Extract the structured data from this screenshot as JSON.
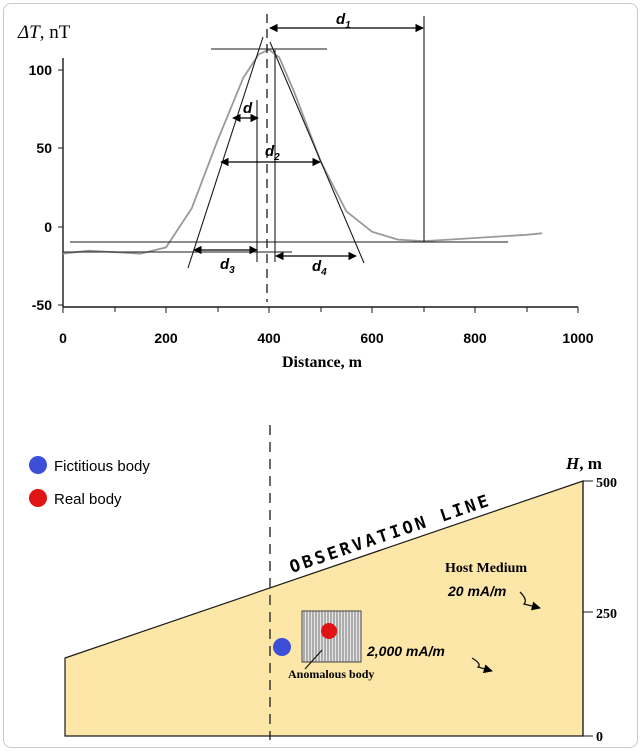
{
  "colors": {
    "axis": "#1a1a1a",
    "profile": "#9a9a9a",
    "host_fill": "#fde7a8",
    "fictitious": "#3d4fd6",
    "real": "#e01414",
    "anomalous_fill": "#d8d8d8"
  },
  "profile_chart": {
    "y_label_symbol": "ΔT",
    "y_label_unit": ", nT",
    "x_label": "Distance, m",
    "x_ticks": [
      "0",
      "200",
      "400",
      "600",
      "800",
      "1000"
    ],
    "y_ticks": [
      "100",
      "50",
      "0",
      "-50"
    ],
    "d_labels": {
      "d1": "d",
      "d1_sub": "1",
      "d2": "d",
      "d2_sub": "2",
      "d3": "d",
      "d3_sub": "3",
      "d4": "d",
      "d4_sub": "4",
      "dc": "d",
      "dc_sub": ""
    }
  },
  "chart_data": {
    "type": "line",
    "title": "",
    "xlabel": "Distance, m",
    "ylabel": "ΔT, nT",
    "xlim": [
      0,
      1000
    ],
    "ylim": [
      -50,
      110
    ],
    "series": [
      {
        "x": [
          0,
          50,
          100,
          150,
          200,
          250,
          300,
          350,
          380,
          400,
          420,
          450,
          500,
          550,
          600,
          650,
          700,
          750,
          800,
          850,
          900,
          930
        ],
        "y": [
          -17,
          -15,
          -16,
          -17,
          -13,
          12,
          55,
          95,
          110,
          113,
          108,
          85,
          42,
          10,
          -3,
          -8,
          -9,
          -8,
          -7,
          -6,
          -5,
          -4
        ]
      }
    ]
  },
  "model": {
    "legend": [
      {
        "label": "Fictitious body",
        "color": "#3d4fd6"
      },
      {
        "label": "Real body",
        "color": "#e01414"
      }
    ],
    "h_axis_label": "H",
    "h_axis_unit": ", m",
    "h_ticks": [
      "500",
      "250",
      "0"
    ],
    "observation_line_label": "OBSERVATION LINE",
    "host_medium_label": "Host Medium",
    "host_medium_value": "20 mA/m",
    "body_value": "2,000 mA/m",
    "anomalous_label": "Anomalous body"
  }
}
